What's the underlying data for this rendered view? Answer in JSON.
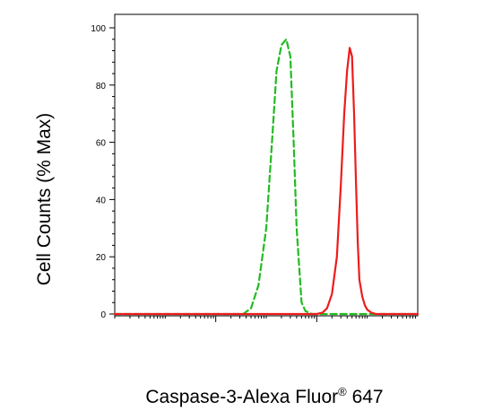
{
  "chart_data": {
    "type": "line",
    "title": "",
    "xlabel": "Caspase-3-Alexa Fluor",
    "xlabel_superscript": "®",
    "xlabel_suffix": " 647",
    "ylabel": "Cell Counts (% Max)",
    "x_scale": "log",
    "xlim": [
      1,
      1000000
    ],
    "ylim": [
      0,
      100
    ],
    "yticks": [
      "0",
      "20",
      "40",
      "60",
      "80",
      "100"
    ],
    "ytick_values": [
      0,
      20,
      40,
      60,
      80,
      100
    ],
    "grid": false,
    "series": [
      {
        "style": "dashed",
        "color": "#22bb22",
        "x": [
          1,
          100,
          350,
          500,
          700,
          1000,
          1300,
          1600,
          2000,
          2500,
          3000,
          3500,
          4000,
          5000,
          6000,
          7000,
          8000,
          10000,
          15000,
          50000,
          1000000
        ],
        "y": [
          0,
          0,
          0,
          2,
          10,
          30,
          60,
          85,
          94,
          96,
          90,
          60,
          30,
          4,
          1,
          0.5,
          0,
          0,
          0,
          0,
          0
        ]
      },
      {
        "style": "solid",
        "color": "#ee1c1c",
        "x": [
          1,
          10000,
          13000,
          16000,
          20000,
          25000,
          30000,
          35000,
          40000,
          45000,
          50000,
          55000,
          60000,
          65000,
          70000,
          80000,
          90000,
          100000,
          120000,
          150000,
          200000,
          1000000
        ],
        "y": [
          0,
          0,
          0.5,
          2,
          7,
          20,
          45,
          70,
          85,
          93,
          90,
          70,
          45,
          25,
          12,
          6,
          3,
          1.5,
          0.5,
          0,
          0,
          0
        ]
      }
    ]
  }
}
